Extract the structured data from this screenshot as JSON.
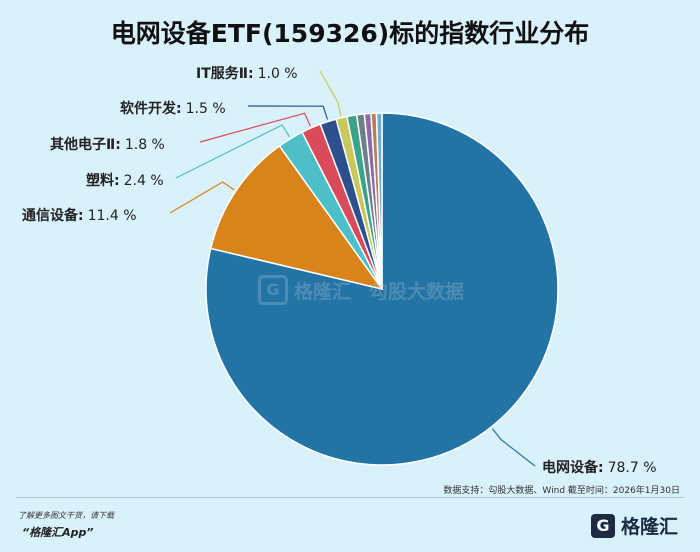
{
  "page": {
    "title": "电网设备ETF(159326)标的指数行业分布",
    "source": "数据支持：勾股大数据、Wind  截至时间：2026年1月30日",
    "promo_line1": "了解更多图文干货，请下载",
    "promo_line2": "“格隆汇App”",
    "logo_mark": "G",
    "logo_text": "格隆汇",
    "watermark_text": "格隆汇",
    "watermark_sub": "勾股大数据"
  },
  "chart_data": {
    "type": "pie",
    "title": "电网设备ETF(159326)标的指数行业分布",
    "start_angle_deg": 0,
    "direction": "clockwise",
    "slices": [
      {
        "name": "电网设备",
        "value": 78.7,
        "label": "78.7 %",
        "color": "#2273a6"
      },
      {
        "name": "通信设备",
        "value": 11.4,
        "label": "11.4 %",
        "color": "#d9841b"
      },
      {
        "name": "塑料",
        "value": 2.4,
        "label": "2.4 %",
        "color": "#4dbfc8"
      },
      {
        "name": "其他电子Ⅱ",
        "value": 1.8,
        "label": "1.8 %",
        "color": "#d94b5a"
      },
      {
        "name": "软件开发",
        "value": 1.5,
        "label": "1.5 %",
        "color": "#2c4f8e"
      },
      {
        "name": "IT服务Ⅱ",
        "value": 1.0,
        "label": "1.0 %",
        "color": "#c8c95a"
      },
      {
        "name": "",
        "value": 0.9,
        "label": "",
        "color": "#3aa48a"
      },
      {
        "name": "",
        "value": 0.7,
        "label": "",
        "color": "#6e7f8a"
      },
      {
        "name": "",
        "value": 0.6,
        "label": "",
        "color": "#8b6aa8"
      },
      {
        "name": "",
        "value": 0.5,
        "label": "",
        "color": "#c07a55"
      },
      {
        "name": "",
        "value": 0.5,
        "label": "",
        "color": "#6aaed6"
      }
    ]
  }
}
